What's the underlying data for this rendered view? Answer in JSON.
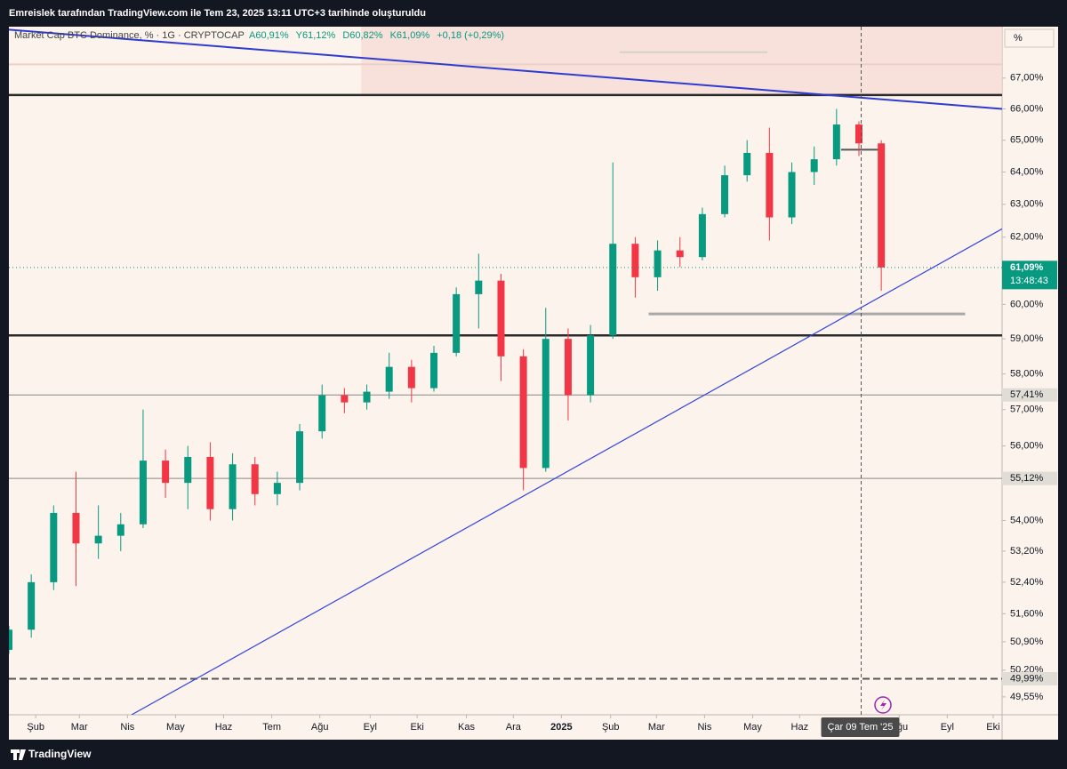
{
  "header": {
    "text": "Emreislek tarafından TradingView.com ile Tem 23, 2025 13:11 UTC+3 tarihinde oluşturuldu"
  },
  "footer": {
    "brand": "TradingView"
  },
  "chart_data": {
    "type": "candlestick",
    "legend": {
      "title": "Market Cap BTC Dominance, % · 1G · CRYPTOCAP",
      "items": [
        "A60,91%",
        "Y61,12%",
        "D60,82%",
        "K61,09%",
        "+0,18 (+0,29%)"
      ]
    },
    "scale_label": "%",
    "log_scale": true,
    "grid": false,
    "up_color": "#089981",
    "down_color": "#f23645",
    "xlim": [
      0,
      88.8
    ],
    "ylim": [
      49.12,
      68.7
    ],
    "xticks": [
      {
        "value": 2.4,
        "label": "Şub"
      },
      {
        "value": 6.3,
        "label": "Mar"
      },
      {
        "value": 10.6,
        "label": "Nis"
      },
      {
        "value": 14.9,
        "label": "May"
      },
      {
        "value": 19.2,
        "label": "Haz"
      },
      {
        "value": 23.5,
        "label": "Tem"
      },
      {
        "value": 27.8,
        "label": "Ağu"
      },
      {
        "value": 32.3,
        "label": "Eyl"
      },
      {
        "value": 36.5,
        "label": "Eki"
      },
      {
        "value": 40.9,
        "label": "Kas"
      },
      {
        "value": 45.1,
        "label": "Ara"
      },
      {
        "value": 49.4,
        "label": "2025"
      },
      {
        "value": 53.8,
        "label": "Şub"
      },
      {
        "value": 57.9,
        "label": "Mar"
      },
      {
        "value": 62.2,
        "label": "Nis"
      },
      {
        "value": 66.5,
        "label": "May"
      },
      {
        "value": 70.7,
        "label": "Haz"
      },
      {
        "value": 79.6,
        "label": "Ağu"
      },
      {
        "value": 83.9,
        "label": "Eyl"
      },
      {
        "value": 88.0,
        "label": "Eki"
      }
    ],
    "yticks": [
      {
        "value": 67,
        "label": "67,00%"
      },
      {
        "value": 66,
        "label": "66,00%"
      },
      {
        "value": 65,
        "label": "65,00%"
      },
      {
        "value": 64,
        "label": "64,00%"
      },
      {
        "value": 63,
        "label": "63,00%"
      },
      {
        "value": 62,
        "label": "62,00%"
      },
      {
        "value": 60,
        "label": "60,00%"
      },
      {
        "value": 59,
        "label": "59,00%"
      },
      {
        "value": 58,
        "label": "58,00%"
      },
      {
        "value": 57,
        "label": "57,00%"
      },
      {
        "value": 56,
        "label": "56,00%"
      },
      {
        "value": 54,
        "label": "54,00%"
      },
      {
        "value": 53.2,
        "label": "53,20%"
      },
      {
        "value": 52.4,
        "label": "52,40%"
      },
      {
        "value": 51.6,
        "label": "51,60%"
      },
      {
        "value": 50.9,
        "label": "50,90%"
      },
      {
        "value": 50.2,
        "label": "50,20%"
      },
      {
        "value": 49.55,
        "label": "49,55%"
      }
    ],
    "x": [
      0,
      2,
      4,
      6,
      8,
      10,
      12,
      14,
      16,
      18,
      20,
      22,
      24,
      26,
      28,
      30,
      32,
      34,
      36,
      38,
      40,
      42,
      44,
      46,
      48,
      50,
      52,
      54,
      56,
      58,
      60,
      62,
      64,
      66,
      68,
      70,
      72,
      74,
      76,
      78
    ],
    "open": [
      50.7,
      51.2,
      52.4,
      54.2,
      53.4,
      53.6,
      53.9,
      55.6,
      55.0,
      55.7,
      54.3,
      55.5,
      54.7,
      55.0,
      56.4,
      57.4,
      57.2,
      57.5,
      58.2,
      57.6,
      58.6,
      60.3,
      60.7,
      58.5,
      55.4,
      59.0,
      57.4,
      59.1,
      61.8,
      60.8,
      61.6,
      61.4,
      62.7,
      63.9,
      64.6,
      62.6,
      64.0,
      64.4,
      65.5,
      64.9
    ],
    "high": [
      51.3,
      52.6,
      54.4,
      55.3,
      54.4,
      54.2,
      57.0,
      55.9,
      56.0,
      56.1,
      55.8,
      55.7,
      55.3,
      56.6,
      57.7,
      57.6,
      57.7,
      58.6,
      58.4,
      58.8,
      60.5,
      61.5,
      60.9,
      58.7,
      59.9,
      59.3,
      59.4,
      64.3,
      62.0,
      61.9,
      62.0,
      62.9,
      64.2,
      65.0,
      65.4,
      64.3,
      64.8,
      66.0,
      65.6,
      65.0
    ],
    "low": [
      50.6,
      51.0,
      52.2,
      52.3,
      53.0,
      53.2,
      53.8,
      54.6,
      54.3,
      54.0,
      54.0,
      54.4,
      54.4,
      54.8,
      56.2,
      56.9,
      57.0,
      57.3,
      57.2,
      57.5,
      58.5,
      59.3,
      57.8,
      54.8,
      55.3,
      56.7,
      57.2,
      59.0,
      60.2,
      60.4,
      61.1,
      61.3,
      62.6,
      63.7,
      61.9,
      62.4,
      63.6,
      64.2,
      64.5,
      60.4
    ],
    "close": [
      51.2,
      52.4,
      54.2,
      53.4,
      53.6,
      53.9,
      55.6,
      55.0,
      55.7,
      54.3,
      55.5,
      54.7,
      55.0,
      56.4,
      57.4,
      57.2,
      57.5,
      58.2,
      57.6,
      58.6,
      60.3,
      60.7,
      58.5,
      55.4,
      59.0,
      57.4,
      59.1,
      61.8,
      60.8,
      61.6,
      61.4,
      62.7,
      63.9,
      64.6,
      62.6,
      64.0,
      64.4,
      65.5,
      64.9,
      61.09
    ],
    "zone": {
      "x": [
        31.5,
        88.8
      ],
      "values": [
        66.45,
        68.7
      ],
      "color": "#f6dcd6"
    },
    "levels": [
      {
        "value": 66.45,
        "color": "#2a2a2a",
        "width": 2.5
      },
      {
        "value": 59.1,
        "color": "#2a2a2a",
        "width": 2.5
      },
      {
        "value": 57.41,
        "color": "#888888",
        "width": 1
      },
      {
        "value": 55.12,
        "color": "#888888",
        "width": 1
      },
      {
        "value": 49.99,
        "color": "#555555",
        "width": 2,
        "dash": true
      }
    ],
    "segments": [
      {
        "x": [
          74.4,
          77.8
        ],
        "values": [
          64.7,
          64.7
        ],
        "color": "#555555",
        "width": 2
      },
      {
        "x": [
          57.2,
          85.5
        ],
        "values": [
          59.72,
          59.72
        ],
        "color": "#a8a8a8",
        "width": 3
      },
      {
        "x": [
          54.6,
          67.8
        ],
        "values": [
          67.85,
          67.85
        ],
        "color": "#d8d0c8",
        "width": 2
      },
      {
        "x": [
          0,
          88.8
        ],
        "values": [
          67.45,
          67.45
        ],
        "color": "#ecd0c8",
        "width": 2
      }
    ],
    "trend_lines": [
      {
        "x": [
          0,
          88.8
        ],
        "values": [
          68.6,
          66.0
        ],
        "color": "#2f3bd0",
        "width": 2
      },
      {
        "x": [
          10.97,
          88.8
        ],
        "values": [
          49.12,
          62.25
        ],
        "color": "#3344e0",
        "width": 1.2
      }
    ],
    "price_labels": [
      {
        "value": 61.09,
        "label": "61,09%",
        "sub": "13:48:43",
        "color": "#089981"
      },
      {
        "value": 57.41,
        "label": "57,41%",
        "color": "#e0dcd6"
      },
      {
        "value": 55.12,
        "label": "55,12%",
        "color": "#e0dcd6"
      },
      {
        "value": 49.99,
        "label": "49,99%",
        "color": "#e0dcd6"
      }
    ],
    "crosshair": {
      "x": 76.2,
      "label": "Çar 09 Tem '25"
    }
  }
}
